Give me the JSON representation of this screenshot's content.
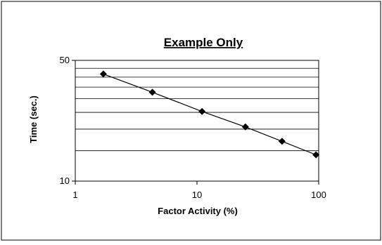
{
  "chart_data": {
    "type": "scatter",
    "title": "Example Only",
    "xlabel": "Factor Activity (%)",
    "ylabel": "Time (sec.)",
    "x_scale": "log",
    "y_scale": "log",
    "xlim": [
      1,
      100
    ],
    "ylim": [
      10,
      50
    ],
    "x_ticks": [
      "1",
      "10",
      "100"
    ],
    "y_ticks": [
      "50",
      "10"
    ],
    "grid": "horizontal",
    "legend": "none",
    "series": [
      {
        "x": [
          1.7,
          4.3,
          11,
          25,
          50,
          95
        ],
        "y": [
          41.7,
          32.7,
          25.3,
          20.6,
          17.0,
          14.2
        ]
      }
    ],
    "colors": {
      "line": "#000000",
      "marker": "#000000",
      "grid": "#000000",
      "frame": "#000000"
    }
  }
}
